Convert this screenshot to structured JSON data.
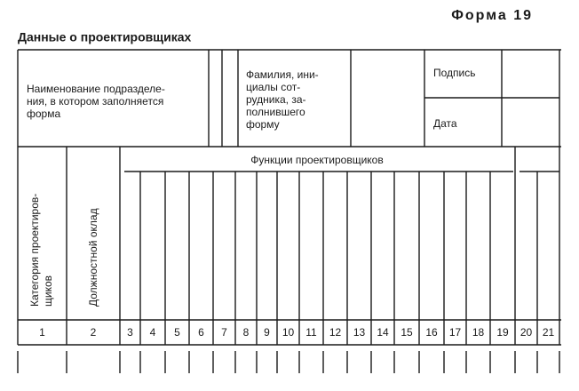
{
  "header": {
    "form_label": "Форма 19",
    "title": "Данные о проектировщиках"
  },
  "form": {
    "department_label": [
      "Наименование подразделе-",
      "ния, в котором заполняется",
      "форма"
    ],
    "employee_label": [
      "Фамилия, ини-",
      "циалы сот-",
      "рудника, за-",
      "полнившего",
      "форму"
    ],
    "signature_label": "Подпись",
    "date_label": "Дата"
  },
  "table": {
    "functions_header": "Функции проектировщиков",
    "category_header": [
      "Категория проектиров-",
      "щиков"
    ],
    "salary_header": "Должностной оклад",
    "column_numbers": [
      1,
      2,
      3,
      4,
      5,
      6,
      7,
      8,
      9,
      10,
      11,
      12,
      13,
      14,
      15,
      16,
      17,
      18,
      19,
      20,
      21
    ]
  }
}
